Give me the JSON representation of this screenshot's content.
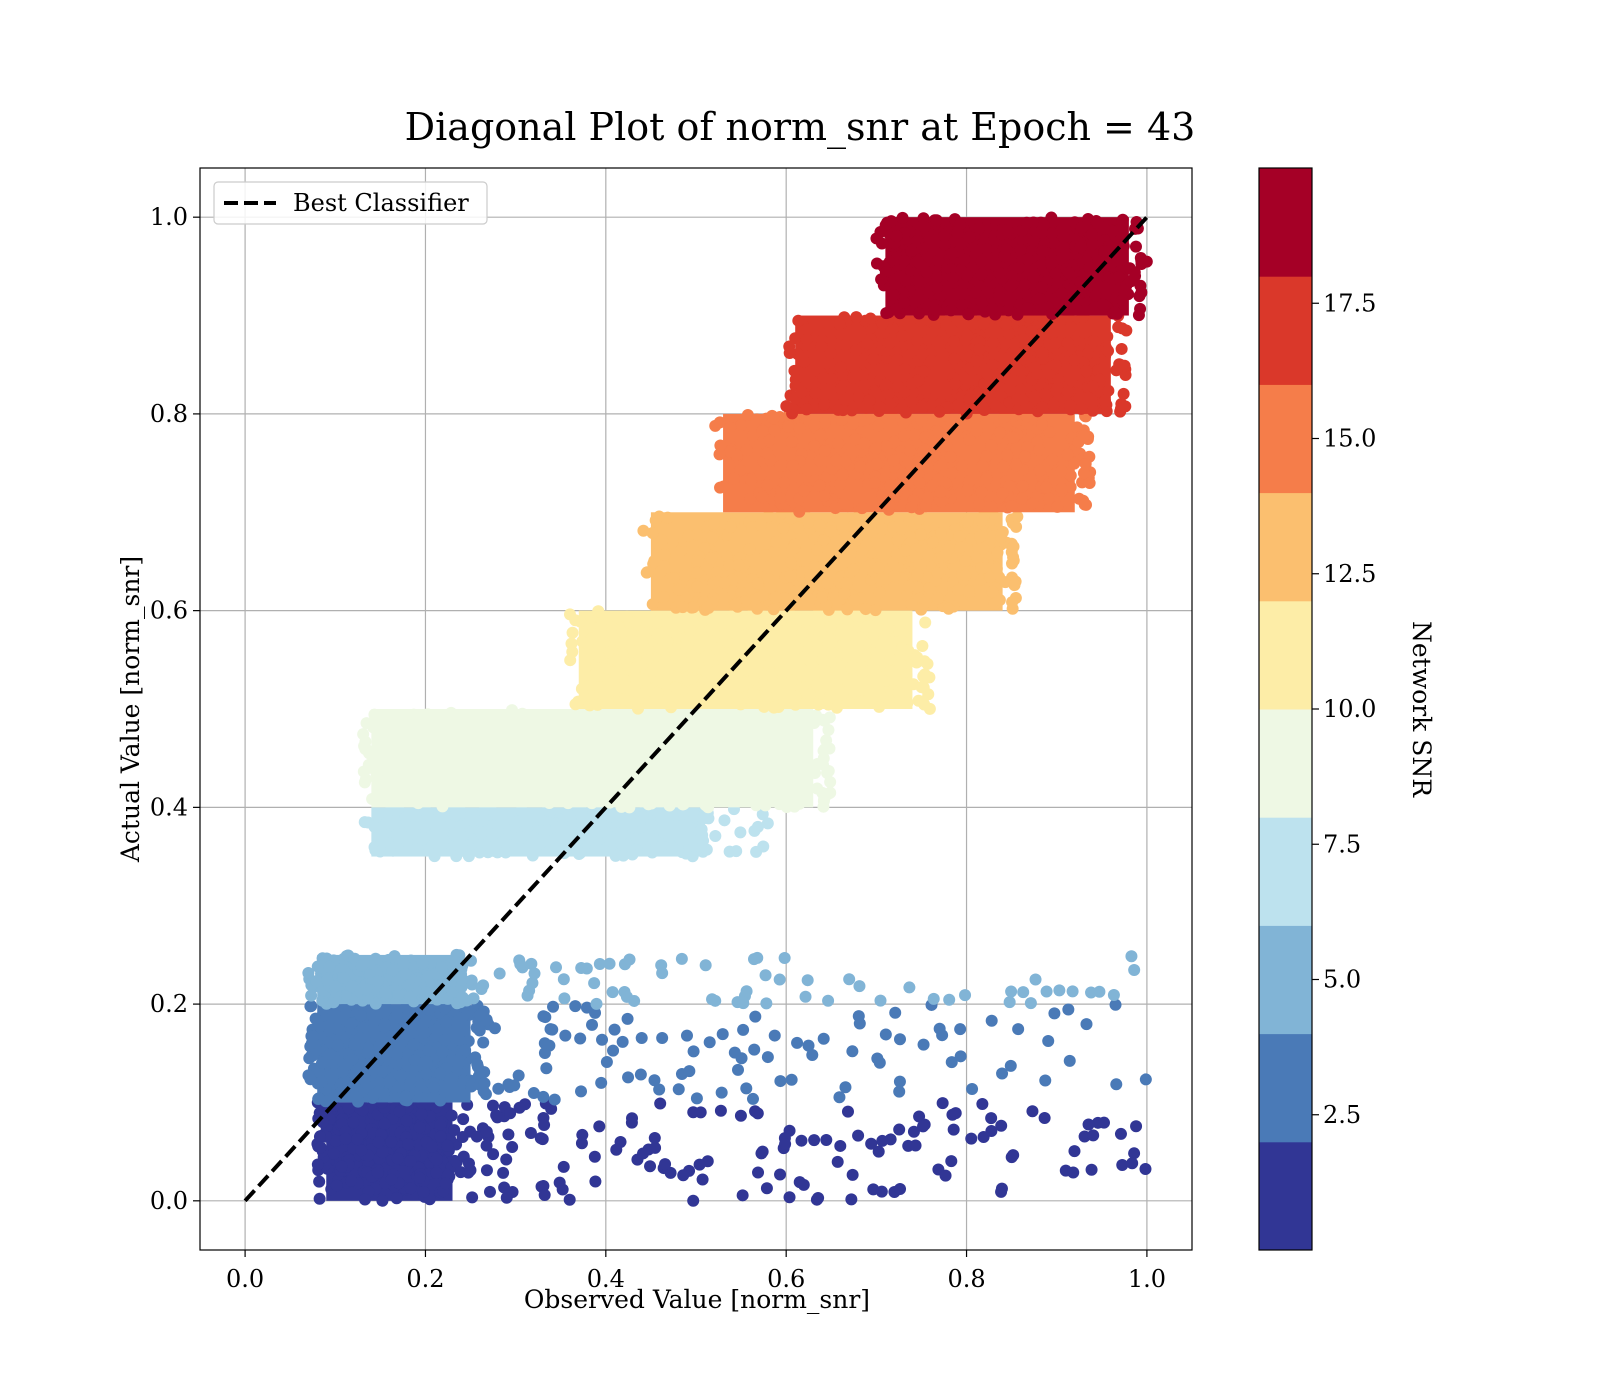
{
  "chart_data": {
    "type": "scatter",
    "title": "Diagonal Plot of norm_snr at Epoch = 43",
    "xlabel": "Observed Value [norm_snr]",
    "ylabel": "Actual Value [norm_snr]",
    "xlim": [
      -0.05,
      1.05
    ],
    "ylim": [
      -0.05,
      1.05
    ],
    "xticks": [
      "0.0",
      "0.2",
      "0.4",
      "0.6",
      "0.8",
      "1.0"
    ],
    "yticks": [
      "0.0",
      "0.2",
      "0.4",
      "0.6",
      "0.8",
      "1.0"
    ],
    "grid": true,
    "legend": {
      "position": "top-left",
      "entries": [
        "Best Classifier"
      ]
    },
    "reference_line": {
      "name": "Best Classifier",
      "style": "dashed",
      "color": "#000000",
      "points": [
        [
          0,
          0
        ],
        [
          1,
          1
        ]
      ]
    },
    "colorbar": {
      "label": "Network SNR",
      "ticks": [
        "2.5",
        "5.0",
        "7.5",
        "10.0",
        "12.5",
        "15.0",
        "17.5"
      ],
      "tick_values": [
        2.5,
        5.0,
        7.5,
        10.0,
        12.5,
        15.0,
        17.5
      ],
      "range": [
        0,
        20
      ],
      "bins": [
        {
          "range": [
            0,
            2
          ],
          "color": "#313695"
        },
        {
          "range": [
            2,
            4
          ],
          "color": "#4a7ab7"
        },
        {
          "range": [
            4,
            6
          ],
          "color": "#81b4d6"
        },
        {
          "range": [
            6,
            8
          ],
          "color": "#bde2ee"
        },
        {
          "range": [
            8,
            10
          ],
          "color": "#eef8e4"
        },
        {
          "range": [
            10,
            12
          ],
          "color": "#fdeda7"
        },
        {
          "range": [
            12,
            14
          ],
          "color": "#fbbf6f"
        },
        {
          "range": [
            14,
            16
          ],
          "color": "#f57d4a"
        },
        {
          "range": [
            16,
            18
          ],
          "color": "#da382a"
        },
        {
          "range": [
            18,
            20
          ],
          "color": "#a50026"
        }
      ]
    },
    "clusters": [
      {
        "snr_bin": 0,
        "y_range": [
          0.0,
          0.1
        ],
        "x_core": [
          0.08,
          0.24
        ],
        "x_tail": [
          0.24,
          1.0
        ],
        "core_points": 220,
        "tail_points": 150
      },
      {
        "snr_bin": 1,
        "y_range": [
          0.1,
          0.2
        ],
        "x_core": [
          0.07,
          0.26
        ],
        "x_tail": [
          0.26,
          1.0
        ],
        "core_points": 200,
        "tail_points": 110
      },
      {
        "snr_bin": 2,
        "y_range": [
          0.2,
          0.25
        ],
        "x_core": [
          0.07,
          0.24
        ],
        "x_tail": [
          0.24,
          1.0
        ],
        "core_points": 150,
        "tail_points": 75
      },
      {
        "snr_bin": 3,
        "y_range": [
          0.35,
          0.4
        ],
        "x_core": [
          0.13,
          0.52
        ],
        "x_tail": [
          0.52,
          0.58
        ],
        "core_points": 220,
        "tail_points": 12
      },
      {
        "snr_bin": 4,
        "y_range": [
          0.4,
          0.5
        ],
        "x_core": [
          0.13,
          0.64
        ],
        "x_tail": [
          0.64,
          0.65
        ],
        "core_points": 320,
        "tail_points": 20
      },
      {
        "snr_bin": 5,
        "y_range": [
          0.5,
          0.6
        ],
        "x_core": [
          0.36,
          0.75
        ],
        "x_tail": [
          0.75,
          0.76
        ],
        "core_points": 300,
        "tail_points": 15
      },
      {
        "snr_bin": 6,
        "y_range": [
          0.6,
          0.7
        ],
        "x_core": [
          0.44,
          0.85
        ],
        "x_tail": [
          0.85,
          0.86
        ],
        "core_points": 300,
        "tail_points": 15
      },
      {
        "snr_bin": 7,
        "y_range": [
          0.7,
          0.8
        ],
        "x_core": [
          0.52,
          0.93
        ],
        "x_tail": [
          0.93,
          0.94
        ],
        "core_points": 300,
        "tail_points": 15
      },
      {
        "snr_bin": 8,
        "y_range": [
          0.8,
          0.9
        ],
        "x_core": [
          0.6,
          0.97
        ],
        "x_tail": [
          0.97,
          0.98
        ],
        "core_points": 300,
        "tail_points": 12
      },
      {
        "snr_bin": 9,
        "y_range": [
          0.9,
          1.0
        ],
        "x_core": [
          0.7,
          0.99
        ],
        "x_tail": [
          0.99,
          1.0
        ],
        "core_points": 300,
        "tail_points": 10
      }
    ]
  }
}
